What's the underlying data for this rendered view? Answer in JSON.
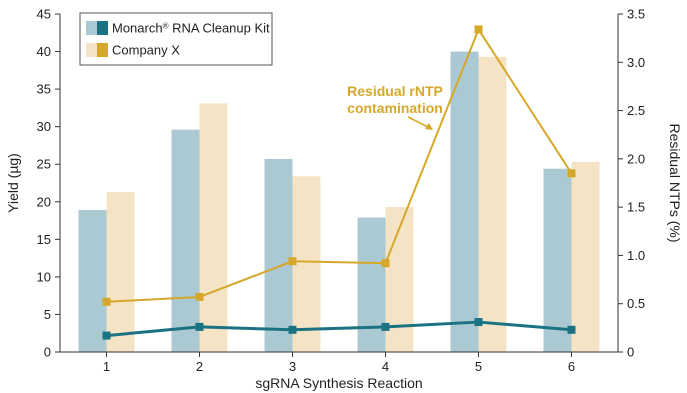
{
  "chart_data": {
    "type": "bar",
    "x": {
      "label": "sgRNA Synthesis Reaction",
      "categories": [
        "1",
        "2",
        "3",
        "4",
        "5",
        "6"
      ]
    },
    "y_left": {
      "label": "Yield (µg)",
      "range": [
        0,
        45
      ],
      "ticks": [
        0,
        5,
        10,
        15,
        20,
        25,
        30,
        35,
        40,
        45
      ]
    },
    "y_right": {
      "label": "Residual NTPs (%)",
      "range": [
        0,
        3.5
      ],
      "ticks": [
        0,
        0.5,
        1.0,
        1.5,
        2.0,
        2.5,
        3.0,
        3.5
      ],
      "tick_labels": [
        "0",
        "0.5",
        "1.0",
        "1.5",
        "2.0",
        "2.5",
        "3.0",
        "3.5"
      ]
    },
    "series": [
      {
        "name": "Monarch® RNA Cleanup Kit",
        "legend_name_parts": [
          "Monarch",
          "®",
          " RNA Cleanup Kit"
        ],
        "bar_values": [
          18.9,
          29.6,
          25.7,
          17.9,
          40.0,
          24.4
        ],
        "line_values": [
          0.17,
          0.26,
          0.23,
          0.26,
          0.31,
          0.23
        ],
        "bar_color": "#abc9d3",
        "line_color": "#1b7282"
      },
      {
        "name": "Company X",
        "bar_values": [
          21.3,
          33.1,
          23.4,
          19.3,
          39.3,
          25.3
        ],
        "line_values": [
          0.52,
          0.57,
          0.94,
          0.92,
          3.34,
          1.85
        ],
        "bar_color": "#f4e4c5",
        "line_color": "#d6a82a"
      }
    ],
    "annotation": {
      "lines": [
        "Residual rNTP",
        "contamination"
      ],
      "color": "#d6a82a"
    },
    "legend_position": "top-left",
    "grid": false
  }
}
